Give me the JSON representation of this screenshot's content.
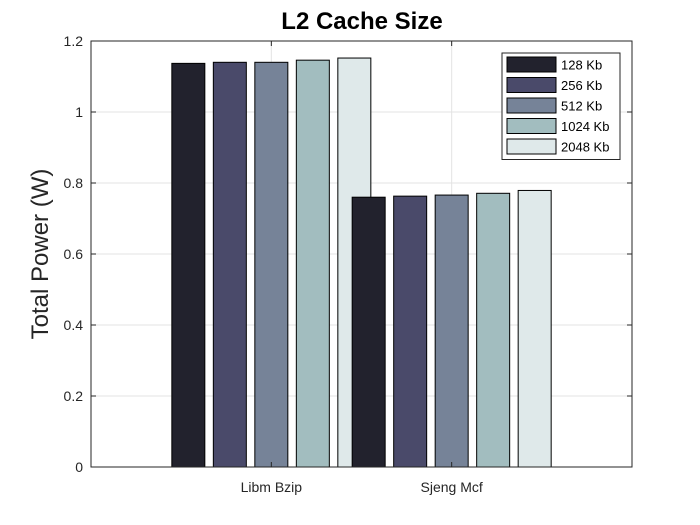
{
  "chart_data": {
    "type": "bar",
    "title": "L2 Cache Size",
    "xlabel": "",
    "ylabel": "Total Power (W)",
    "categories": [
      "Libm Bzip",
      "Sjeng Mcf"
    ],
    "series": [
      {
        "name": "128 Kb",
        "values": [
          1.137,
          0.76
        ],
        "color": "#22222d"
      },
      {
        "name": "256 Kb",
        "values": [
          1.14,
          0.763
        ],
        "color": "#4a4a6a"
      },
      {
        "name": "512 Kb",
        "values": [
          1.14,
          0.766
        ],
        "color": "#768398"
      },
      {
        "name": "1024 Kb",
        "values": [
          1.146,
          0.771
        ],
        "color": "#a2bdbf"
      },
      {
        "name": "2048 Kb",
        "values": [
          1.152,
          0.779
        ],
        "color": "#dfe9ea"
      }
    ],
    "ylim": [
      0,
      1.2
    ],
    "yticks": [
      0,
      0.2,
      0.4,
      0.6,
      0.8,
      1,
      1.2
    ],
    "ytick_labels": [
      "0",
      "0.2",
      "0.4",
      "0.6",
      "0.8",
      "1",
      "1.2"
    ],
    "grid": true,
    "legend_position": "top-right"
  }
}
